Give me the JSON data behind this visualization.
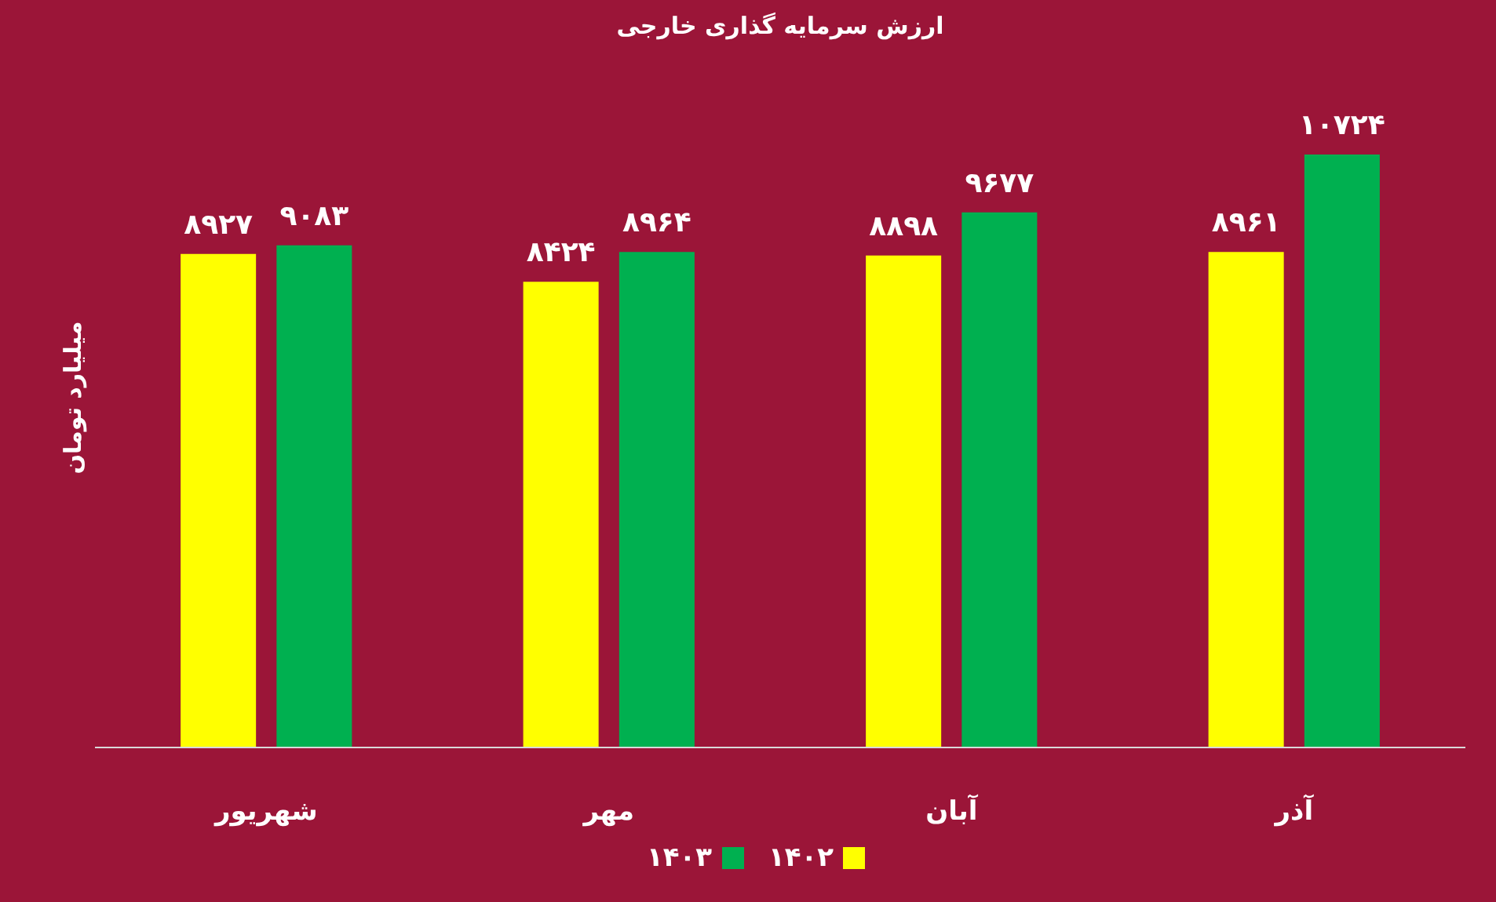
{
  "chart_data": {
    "type": "bar",
    "title": "ارزش سرمایه گذاری خارجی",
    "ylabel": "میلیارد تومان",
    "categories": [
      "شهریور",
      "مهر",
      "آبان",
      "آذر"
    ],
    "series": [
      {
        "name": "۱۴۰۲",
        "color": "#ffff00",
        "values": [
          8927,
          8424,
          8898,
          8961
        ],
        "value_labels": [
          "۸۹۲۷",
          "۸۴۲۴",
          "۸۸۹۸",
          "۸۹۶۱"
        ]
      },
      {
        "name": "۱۴۰۳",
        "color": "#00b050",
        "values": [
          9083,
          8964,
          9677,
          10724
        ],
        "value_labels": [
          "۹۰۸۳",
          "۸۹۶۴",
          "۹۶۷۷",
          "۱۰۷۲۴"
        ]
      }
    ],
    "legend": "bottom",
    "grid": false
  }
}
